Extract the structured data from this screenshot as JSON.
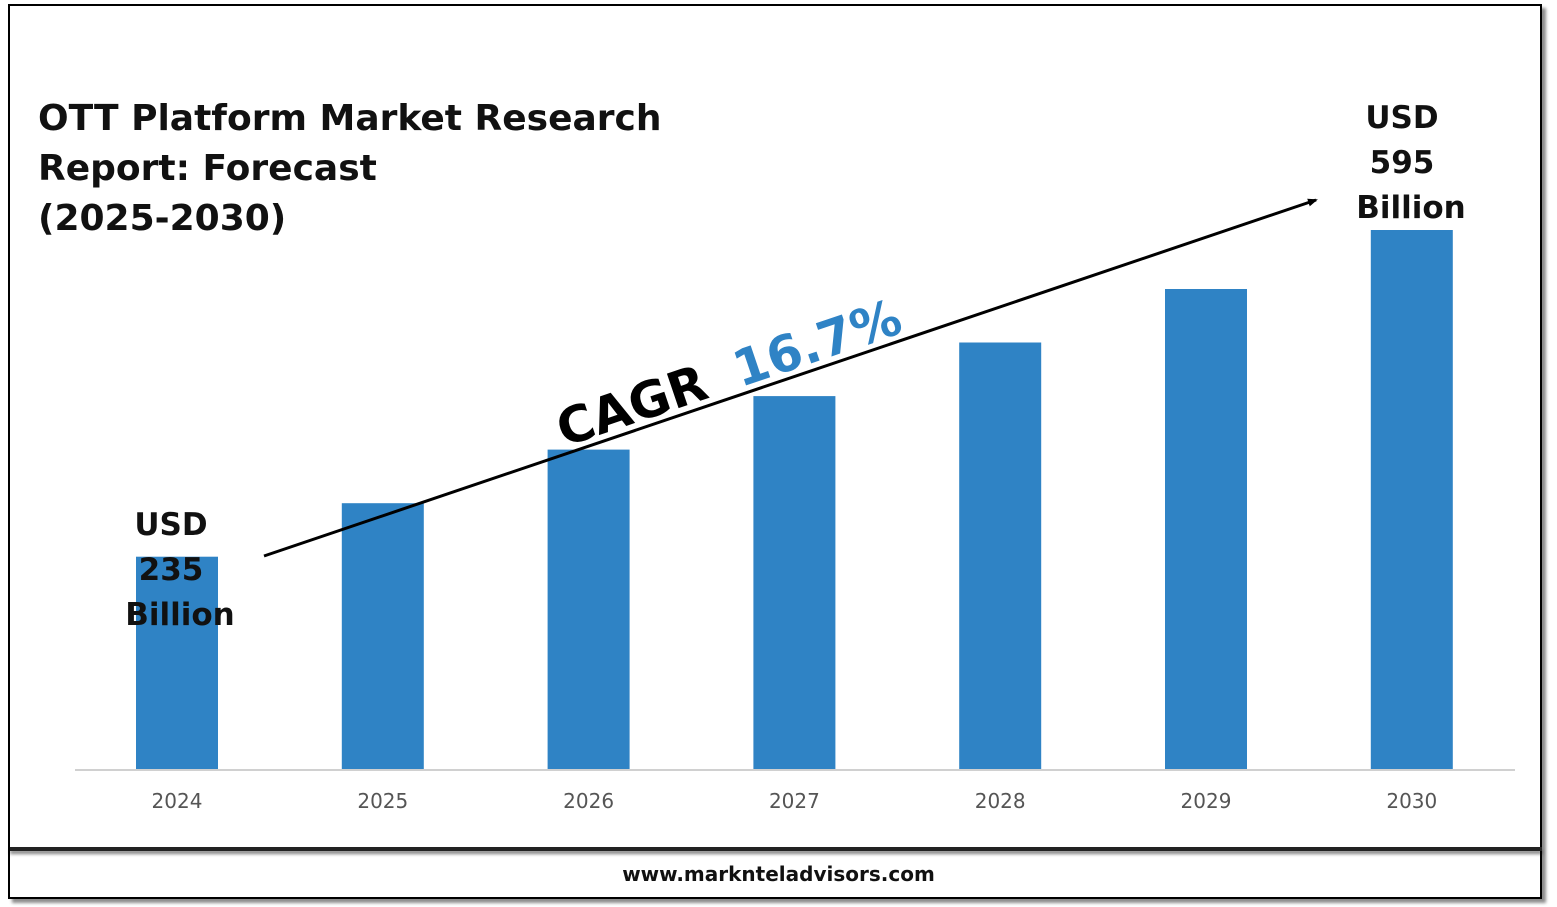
{
  "title_lines": [
    "OTT Platform Market Research",
    "Report: Forecast",
    "(2025-2030)"
  ],
  "footer": {
    "website": "www.marknteladvisors.com"
  },
  "colors": {
    "bar": "#2f83c5",
    "cagr_value": "#2f83c5",
    "text": "#111111"
  },
  "annotations": {
    "start": [
      "USD",
      "235",
      "Billion"
    ],
    "end": [
      "USD",
      "595",
      "Billion"
    ],
    "cagr_label": "CAGR",
    "cagr_value": "16.7%"
  },
  "chart_data": {
    "type": "bar",
    "title": "OTT Platform Market Research Report: Forecast (2025-2030)",
    "categories": [
      "2024",
      "2025",
      "2026",
      "2027",
      "2028",
      "2029",
      "2030"
    ],
    "values": [
      235,
      294,
      353,
      412,
      471,
      530,
      595
    ],
    "unit": "USD Billion",
    "xlabel": "",
    "ylabel": "",
    "ylim": [
      0,
      640
    ],
    "grid": false,
    "legend": "none"
  }
}
